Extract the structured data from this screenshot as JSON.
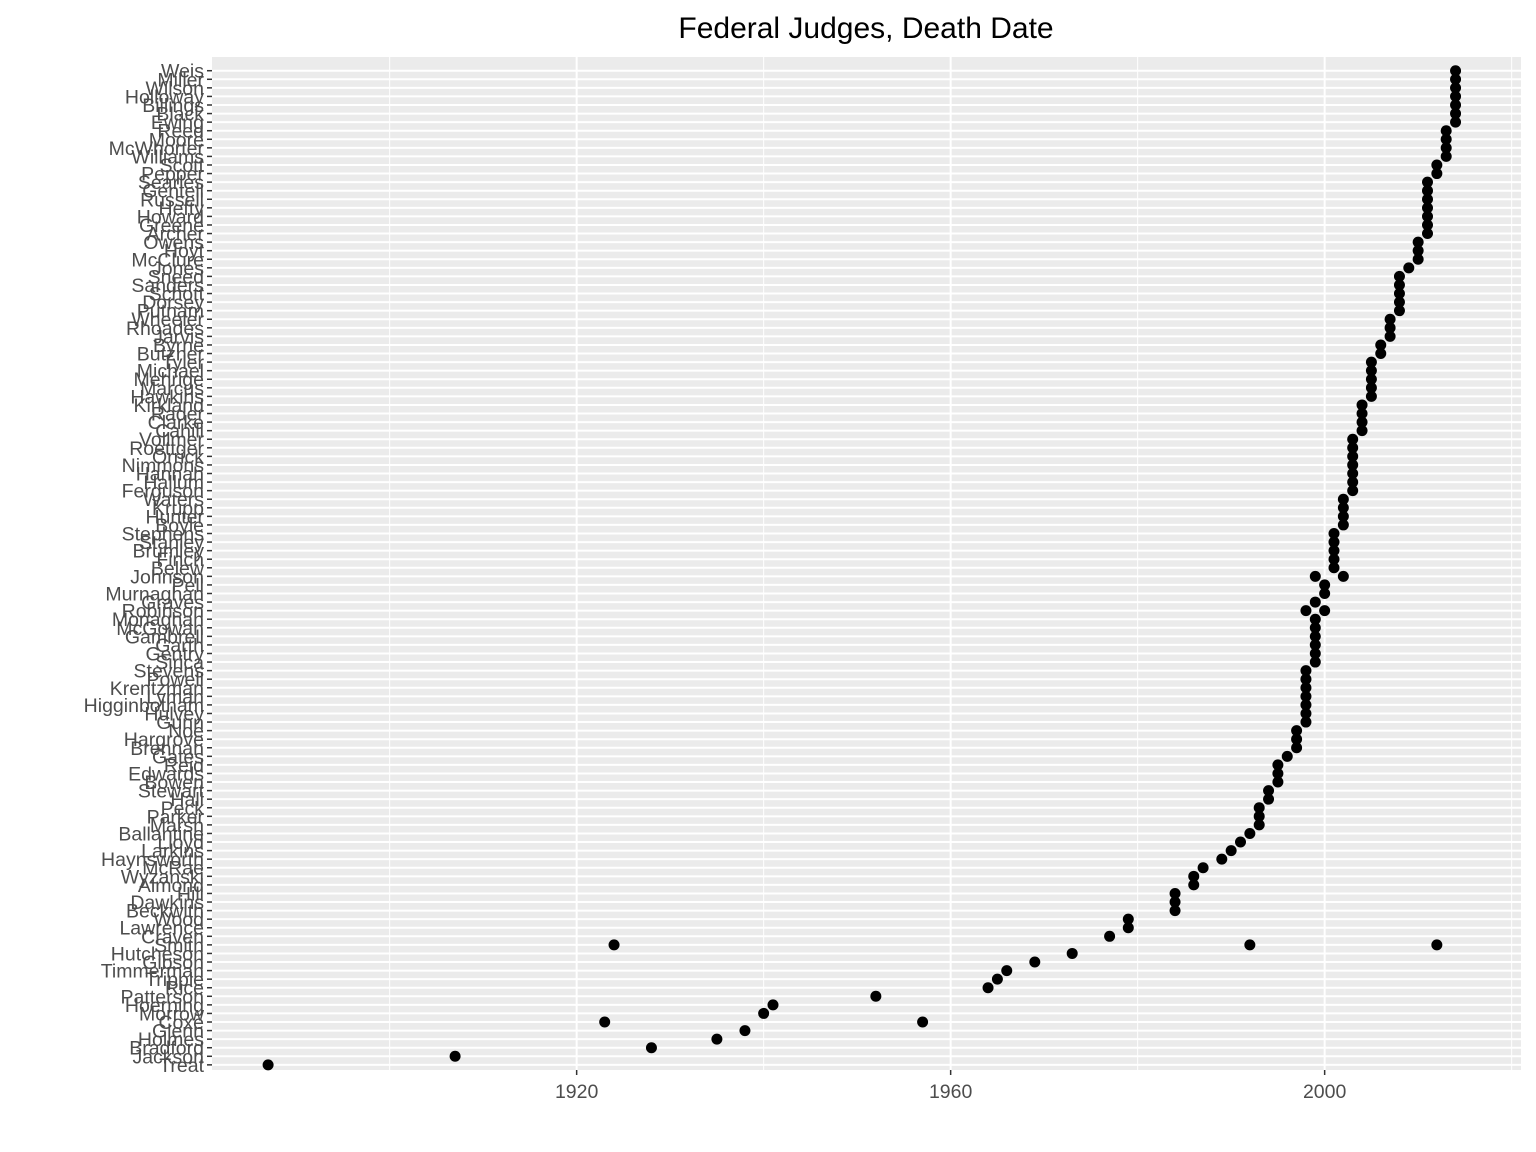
{
  "chart_data": {
    "type": "scatter",
    "title": "Federal Judges, Death Date",
    "xlabel": "",
    "ylabel": "",
    "x_ticks": [
      1920,
      1960,
      2000
    ],
    "xlim": [
      1881,
      2021
    ],
    "grid": true,
    "background": "#ebebeb",
    "point_color": "#000000",
    "categories": [
      "Treat",
      "Jackson",
      "Bradford",
      "Holmes",
      "Glenn",
      "Coxe",
      "Morrow",
      "Hoerning",
      "Patterson",
      "Rice",
      "Tripple",
      "Timmerman",
      "Gibson",
      "Hutcheson",
      "Smith",
      "Craven",
      "Lawrence",
      "Wood",
      "Beckwith",
      "Dawkins",
      "Hill",
      "Almond",
      "Wyzanski",
      "McRae",
      "Haynsworth",
      "Larkins",
      "Lloyd",
      "Ballantine",
      "Marsh",
      "Parker",
      "Peck",
      "Hall",
      "Stewart",
      "Bowen",
      "Edwards",
      "Reid",
      "Gates",
      "Brennan",
      "Hargrove",
      "Noe",
      "Gunn",
      "Hulvey",
      "Higginbotham",
      "Lyman",
      "Krentzman",
      "Powell",
      "Stevens",
      "Sirica",
      "Gentry",
      "Garth",
      "Gambrell",
      "McGowan",
      "Monaghan",
      "Robinson",
      "Graves",
      "Murnaghan",
      "Pell",
      "Johnson",
      "Belew",
      "Finch",
      "Brumley",
      "Stanley",
      "Stephens",
      "Boyle",
      "Hunter",
      "Krupp",
      "Waters",
      "Ferguson",
      "Hallum",
      "Hannah",
      "Nimmons",
      "Orrick",
      "Roettger",
      "Vollmer",
      "Cahill",
      "Clarke",
      "Rader",
      "Kirkland",
      "Hawkins",
      "Marcus",
      "Mehrige",
      "Michael",
      "Tyler",
      "Butzner",
      "Byrne",
      "Jarvis",
      "Rhoades",
      "Wheeler",
      "Putnam",
      "Dorsey",
      "Schott",
      "Sanders",
      "Sneed",
      "Jones",
      "McClure",
      "Hoyt",
      "Owens",
      "Archer",
      "Greene",
      "Howard",
      "Hefty",
      "Russell",
      "Gentell",
      "Searles",
      "Pepper",
      "Scott",
      "Williams",
      "McWhorter",
      "Moore",
      "Reed",
      "Ewing",
      "Black",
      "Billings",
      "Holloway",
      "Wilson",
      "Miller",
      "Weis"
    ],
    "series": [
      {
        "name": "Death Date",
        "points": [
          {
            "y": "Treat",
            "x": 1887
          },
          {
            "y": "Jackson",
            "x": 1907
          },
          {
            "y": "Bradford",
            "x": 1928
          },
          {
            "y": "Holmes",
            "x": 1935
          },
          {
            "y": "Glenn",
            "x": 1938
          },
          {
            "y": "Coxe",
            "x": 1923
          },
          {
            "y": "Coxe",
            "x": 1957
          },
          {
            "y": "Morrow",
            "x": 1940
          },
          {
            "y": "Hoerning",
            "x": 1941
          },
          {
            "y": "Patterson",
            "x": 1952
          },
          {
            "y": "Rice",
            "x": 1964
          },
          {
            "y": "Tripple",
            "x": 1965
          },
          {
            "y": "Timmerman",
            "x": 1966
          },
          {
            "y": "Gibson",
            "x": 1969
          },
          {
            "y": "Hutcheson",
            "x": 1973
          },
          {
            "y": "Smith",
            "x": 1924
          },
          {
            "y": "Smith",
            "x": 1992
          },
          {
            "y": "Smith",
            "x": 2012
          },
          {
            "y": "Craven",
            "x": 1977
          },
          {
            "y": "Lawrence",
            "x": 1979
          },
          {
            "y": "Wood",
            "x": 1979
          },
          {
            "y": "Beckwith",
            "x": 1984
          },
          {
            "y": "Dawkins",
            "x": 1984
          },
          {
            "y": "Hill",
            "x": 1984
          },
          {
            "y": "Almond",
            "x": 1986
          },
          {
            "y": "Wyzanski",
            "x": 1986
          },
          {
            "y": "McRae",
            "x": 1987
          },
          {
            "y": "Haynsworth",
            "x": 1989
          },
          {
            "y": "Larkins",
            "x": 1990
          },
          {
            "y": "Lloyd",
            "x": 1991
          },
          {
            "y": "Ballantine",
            "x": 1992
          },
          {
            "y": "Marsh",
            "x": 1993
          },
          {
            "y": "Parker",
            "x": 1993
          },
          {
            "y": "Peck",
            "x": 1993
          },
          {
            "y": "Hall",
            "x": 1994
          },
          {
            "y": "Stewart",
            "x": 1994
          },
          {
            "y": "Bowen",
            "x": 1995
          },
          {
            "y": "Edwards",
            "x": 1995
          },
          {
            "y": "Reid",
            "x": 1995
          },
          {
            "y": "Gates",
            "x": 1996
          },
          {
            "y": "Brennan",
            "x": 1997
          },
          {
            "y": "Hargrove",
            "x": 1997
          },
          {
            "y": "Noe",
            "x": 1997
          },
          {
            "y": "Gunn",
            "x": 1998
          },
          {
            "y": "Hulvey",
            "x": 1998
          },
          {
            "y": "Higginbotham",
            "x": 1998
          },
          {
            "y": "Lyman",
            "x": 1998
          },
          {
            "y": "Krentzman",
            "x": 1998
          },
          {
            "y": "Powell",
            "x": 1998
          },
          {
            "y": "Stevens",
            "x": 1998
          },
          {
            "y": "Sirica",
            "x": 1999
          },
          {
            "y": "Gentry",
            "x": 1999
          },
          {
            "y": "Garth",
            "x": 1999
          },
          {
            "y": "Gambrell",
            "x": 1999
          },
          {
            "y": "McGowan",
            "x": 1999
          },
          {
            "y": "Monaghan",
            "x": 1999
          },
          {
            "y": "Robinson",
            "x": 1998
          },
          {
            "y": "Robinson",
            "x": 2000
          },
          {
            "y": "Graves",
            "x": 1999
          },
          {
            "y": "Murnaghan",
            "x": 2000
          },
          {
            "y": "Pell",
            "x": 2000
          },
          {
            "y": "Johnson",
            "x": 1999
          },
          {
            "y": "Johnson",
            "x": 2002
          },
          {
            "y": "Belew",
            "x": 2001
          },
          {
            "y": "Finch",
            "x": 2001
          },
          {
            "y": "Brumley",
            "x": 2001
          },
          {
            "y": "Stanley",
            "x": 2001
          },
          {
            "y": "Stephens",
            "x": 2001
          },
          {
            "y": "Boyle",
            "x": 2002
          },
          {
            "y": "Hunter",
            "x": 2002
          },
          {
            "y": "Krupp",
            "x": 2002
          },
          {
            "y": "Waters",
            "x": 2002
          },
          {
            "y": "Ferguson",
            "x": 2003
          },
          {
            "y": "Hallum",
            "x": 2003
          },
          {
            "y": "Hannah",
            "x": 2003
          },
          {
            "y": "Nimmons",
            "x": 2003
          },
          {
            "y": "Orrick",
            "x": 2003
          },
          {
            "y": "Roettger",
            "x": 2003
          },
          {
            "y": "Vollmer",
            "x": 2003
          },
          {
            "y": "Cahill",
            "x": 2004
          },
          {
            "y": "Clarke",
            "x": 2004
          },
          {
            "y": "Rader",
            "x": 2004
          },
          {
            "y": "Kirkland",
            "x": 2004
          },
          {
            "y": "Hawkins",
            "x": 2005
          },
          {
            "y": "Marcus",
            "x": 2005
          },
          {
            "y": "Mehrige",
            "x": 2005
          },
          {
            "y": "Michael",
            "x": 2005
          },
          {
            "y": "Tyler",
            "x": 2005
          },
          {
            "y": "Butzner",
            "x": 2006
          },
          {
            "y": "Byrne",
            "x": 2006
          },
          {
            "y": "Jarvis",
            "x": 2007
          },
          {
            "y": "Rhoades",
            "x": 2007
          },
          {
            "y": "Wheeler",
            "x": 2007
          },
          {
            "y": "Putnam",
            "x": 2008
          },
          {
            "y": "Dorsey",
            "x": 2008
          },
          {
            "y": "Schott",
            "x": 2008
          },
          {
            "y": "Sanders",
            "x": 2008
          },
          {
            "y": "Sneed",
            "x": 2008
          },
          {
            "y": "Jones",
            "x": 2009
          },
          {
            "y": "McClure",
            "x": 2010
          },
          {
            "y": "Hoyt",
            "x": 2010
          },
          {
            "y": "Owens",
            "x": 2010
          },
          {
            "y": "Archer",
            "x": 2011
          },
          {
            "y": "Greene",
            "x": 2011
          },
          {
            "y": "Howard",
            "x": 2011
          },
          {
            "y": "Hefty",
            "x": 2011
          },
          {
            "y": "Russell",
            "x": 2011
          },
          {
            "y": "Gentell",
            "x": 2011
          },
          {
            "y": "Searles",
            "x": 2011
          },
          {
            "y": "Pepper",
            "x": 2012
          },
          {
            "y": "Scott",
            "x": 2012
          },
          {
            "y": "Williams",
            "x": 2013
          },
          {
            "y": "McWhorter",
            "x": 2013
          },
          {
            "y": "Moore",
            "x": 2013
          },
          {
            "y": "Reed",
            "x": 2013
          },
          {
            "y": "Ewing",
            "x": 2014
          },
          {
            "y": "Black",
            "x": 2014
          },
          {
            "y": "Billings",
            "x": 2014
          },
          {
            "y": "Holloway",
            "x": 2014
          },
          {
            "y": "Wilson",
            "x": 2014
          },
          {
            "y": "Miller",
            "x": 2014
          },
          {
            "y": "Weis",
            "x": 2014
          }
        ]
      }
    ]
  }
}
